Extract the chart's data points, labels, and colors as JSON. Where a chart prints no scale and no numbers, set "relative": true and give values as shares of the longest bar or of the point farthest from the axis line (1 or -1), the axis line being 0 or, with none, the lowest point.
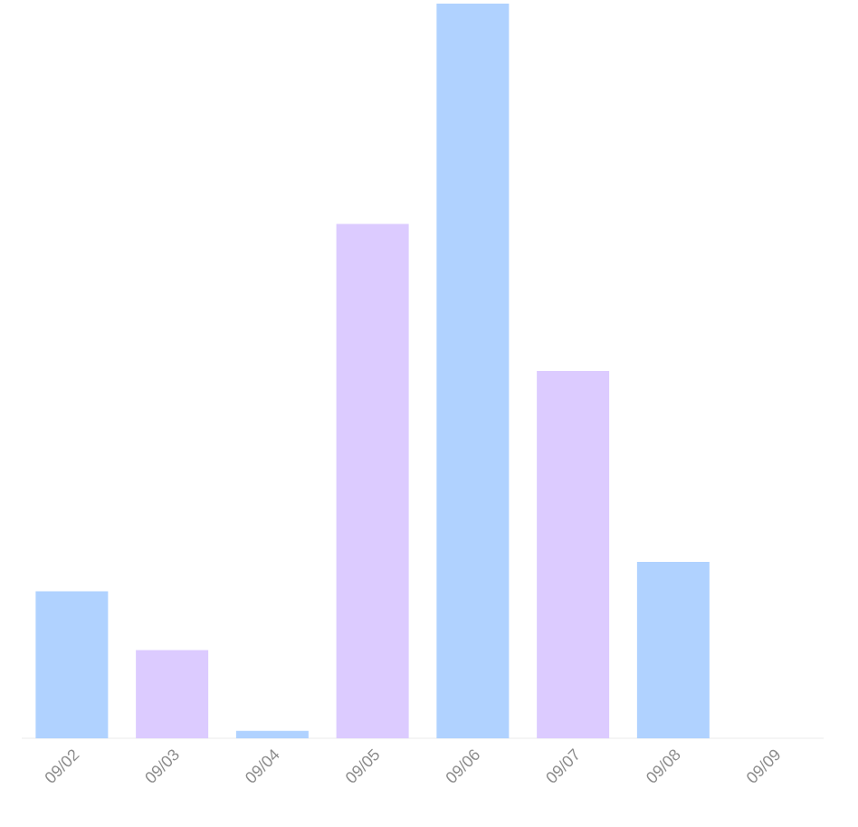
{
  "chart_data": {
    "type": "bar",
    "relative": true,
    "categories": [
      "09/02",
      "09/03",
      "09/04",
      "09/05",
      "09/06",
      "09/07",
      "09/08",
      "09/09"
    ],
    "values": [
      0.2,
      0.12,
      0.01,
      0.7,
      1,
      0.5,
      0.24,
      0
    ],
    "colors": [
      "#b0d2ff",
      "#dccbff",
      "#b0d2ff",
      "#dccbff",
      "#b0d2ff",
      "#dccbff",
      "#b0d2ff",
      "#dccbff"
    ]
  }
}
